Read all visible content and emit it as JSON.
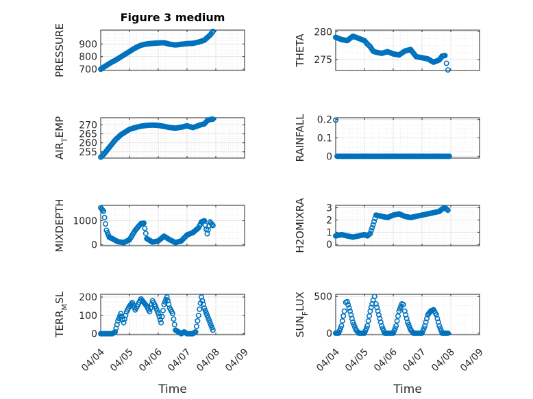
{
  "figure": {
    "title": "Figure 3 medium",
    "xlabel": "Time",
    "marker_color": "#0072BD",
    "axis_color": "#262626",
    "grid_color": "#DFDFDF"
  },
  "chart_data": [
    {
      "type": "scatter",
      "title": "Figure 3 medium",
      "xlabel": "",
      "ylabel": "PRESSURE",
      "ylim": [
        690,
        1010
      ],
      "yticks": [
        700,
        800,
        900
      ],
      "ytick_labels": [
        "700",
        "800",
        "900"
      ],
      "xlim": [
        "04/04",
        "04/09"
      ],
      "xticks": [
        "04/04",
        "04/05",
        "04/06",
        "04/07",
        "04/08",
        "04/09"
      ],
      "grid": "major+minor",
      "series": [
        {
          "x": [
            0,
            0.1,
            0.2,
            0.3,
            0.4,
            0.5,
            0.6,
            0.7,
            0.8,
            0.9,
            1.0,
            1.1,
            1.2,
            1.3,
            1.4,
            1.5,
            1.6,
            1.7,
            1.8,
            1.9,
            2.0,
            2.2,
            2.4,
            2.6,
            2.8,
            3.0,
            3.2,
            3.4,
            3.6,
            3.8,
            3.9
          ],
          "y": [
            700,
            716,
            730,
            745,
            758,
            770,
            783,
            798,
            812,
            826,
            840,
            855,
            868,
            880,
            890,
            896,
            900,
            903,
            905,
            907,
            908,
            910,
            898,
            892,
            898,
            903,
            905,
            915,
            930,
            970,
            1000
          ]
        }
      ]
    },
    {
      "type": "scatter",
      "xlabel": "",
      "ylabel": "THETA",
      "ylim": [
        273,
        280.3
      ],
      "yticks": [
        275,
        280
      ],
      "ytick_labels": [
        "275",
        "280"
      ],
      "xlim": [
        "04/04",
        "04/09"
      ],
      "xticks": [
        "04/04",
        "04/05",
        "04/06",
        "04/07",
        "04/08",
        "04/09"
      ],
      "grid": "major+minor",
      "series": [
        {
          "x": [
            0,
            0.2,
            0.4,
            0.6,
            0.8,
            1.0,
            1.1,
            1.2,
            1.3,
            1.4,
            1.6,
            1.8,
            2.0,
            2.2,
            2.4,
            2.6,
            2.8,
            3.0,
            3.2,
            3.4,
            3.6,
            3.7,
            3.8,
            3.85,
            3.9
          ],
          "y": [
            279,
            278.6,
            278.4,
            279.2,
            278.8,
            278.4,
            277.8,
            277.3,
            276.5,
            276.3,
            276.1,
            276.4,
            276,
            275.8,
            276.5,
            276.8,
            275.5,
            275.3,
            275.1,
            274.5,
            274.9,
            275.6,
            275.7,
            274.3,
            273.1
          ]
        }
      ]
    },
    {
      "type": "scatter",
      "xlabel": "",
      "ylabel": "AIR_TEMP",
      "ylim": [
        251.5,
        274
      ],
      "yticks": [
        255,
        260,
        265,
        270
      ],
      "ytick_labels": [
        "255",
        "260",
        "265",
        "270"
      ],
      "xlim": [
        "04/04",
        "04/09"
      ],
      "xticks": [
        "04/04",
        "04/05",
        "04/06",
        "04/07",
        "04/08",
        "04/09"
      ],
      "grid": "major+minor",
      "series": [
        {
          "x": [
            0,
            0.1,
            0.2,
            0.3,
            0.4,
            0.5,
            0.6,
            0.7,
            0.8,
            0.9,
            1.0,
            1.2,
            1.4,
            1.6,
            1.8,
            2.0,
            2.2,
            2.4,
            2.6,
            2.8,
            3.0,
            3.2,
            3.4,
            3.5,
            3.6,
            3.7,
            3.8,
            3.9
          ],
          "y": [
            252,
            253.5,
            255.5,
            257.5,
            259.5,
            261.5,
            263,
            264.5,
            265.5,
            266.5,
            267.5,
            268.5,
            269.3,
            269.7,
            269.9,
            269.7,
            269.2,
            268.5,
            268.2,
            268.7,
            269.5,
            268.5,
            269.6,
            270.2,
            270.5,
            272.3,
            273,
            273.2
          ]
        }
      ]
    },
    {
      "type": "scatter",
      "xlabel": "",
      "ylabel": "RAINFALL",
      "ylim": [
        -0.01,
        0.21
      ],
      "yticks": [
        0,
        0.1,
        0.2
      ],
      "ytick_labels": [
        "0",
        "0.1",
        "0.2"
      ],
      "xlim": [
        "04/04",
        "04/09"
      ],
      "xticks": [
        "04/04",
        "04/05",
        "04/06",
        "04/07",
        "04/08",
        "04/09"
      ],
      "grid": "major+minor",
      "series": [
        {
          "x": [
            0,
            0.05,
            0.2,
            0.4,
            0.6,
            0.8,
            1.0,
            1.2,
            1.4,
            1.6,
            1.8,
            2.0,
            2.2,
            2.4,
            2.6,
            2.8,
            3.0,
            3.2,
            3.4,
            3.6,
            3.8,
            3.95
          ],
          "y": [
            0.197,
            0,
            0,
            0,
            0,
            0,
            0,
            0,
            0,
            0,
            0,
            0,
            0,
            0,
            0,
            0,
            0,
            0,
            0,
            0,
            0,
            0
          ]
        }
      ]
    },
    {
      "type": "scatter",
      "xlabel": "",
      "ylabel": "MIXDEPTH",
      "ylim": [
        -50,
        1650
      ],
      "yticks": [
        0,
        1000
      ],
      "ytick_labels": [
        "0",
        "1000"
      ],
      "xlim": [
        "04/04",
        "04/09"
      ],
      "xticks": [
        "04/04",
        "04/05",
        "04/06",
        "04/07",
        "04/08",
        "04/09"
      ],
      "grid": "major+minor",
      "series": [
        {
          "x": [
            0,
            0.1,
            0.2,
            0.3,
            0.4,
            0.5,
            0.6,
            0.8,
            1.0,
            1.2,
            1.4,
            1.5,
            1.6,
            1.8,
            2.0,
            2.2,
            2.4,
            2.6,
            2.8,
            3.0,
            3.2,
            3.4,
            3.5,
            3.6,
            3.7,
            3.8,
            3.9
          ],
          "y": [
            1550,
            1400,
            600,
            300,
            250,
            180,
            120,
            80,
            200,
            600,
            880,
            900,
            250,
            100,
            150,
            350,
            200,
            80,
            150,
            400,
            500,
            700,
            950,
            1000,
            450,
            950,
            800
          ]
        }
      ]
    },
    {
      "type": "scatter",
      "xlabel": "",
      "ylabel": "H2OMIXRA",
      "ylim": [
        -0.1,
        3.2
      ],
      "yticks": [
        0,
        1,
        2,
        3
      ],
      "ytick_labels": [
        "0",
        "1",
        "2",
        "3"
      ],
      "xlim": [
        "04/04",
        "04/09"
      ],
      "xticks": [
        "04/04",
        "04/05",
        "04/06",
        "04/07",
        "04/08",
        "04/09"
      ],
      "grid": "major+minor",
      "series": [
        {
          "x": [
            0,
            0.2,
            0.4,
            0.6,
            0.8,
            1.0,
            1.1,
            1.2,
            1.3,
            1.4,
            1.6,
            1.8,
            2.0,
            2.2,
            2.4,
            2.6,
            2.8,
            3.0,
            3.2,
            3.4,
            3.6,
            3.7,
            3.8,
            3.9
          ],
          "y": [
            0.7,
            0.8,
            0.7,
            0.6,
            0.7,
            0.8,
            0.7,
            0.9,
            1.6,
            2.4,
            2.3,
            2.2,
            2.4,
            2.5,
            2.3,
            2.2,
            2.3,
            2.4,
            2.5,
            2.6,
            2.7,
            2.9,
            3.0,
            2.8
          ]
        }
      ]
    },
    {
      "type": "scatter",
      "xlabel": "",
      "ylabel": "TERR_MSL",
      "ylim": [
        -5,
        215
      ],
      "yticks": [
        0,
        100,
        200
      ],
      "ytick_labels": [
        "0",
        "100",
        "200"
      ],
      "xlim": [
        "04/04",
        "04/09"
      ],
      "xticks": [
        "04/04",
        "04/05",
        "04/06",
        "04/07",
        "04/08",
        "04/09"
      ],
      "grid": "major+minor",
      "series": [
        {
          "x": [
            0,
            0.1,
            0.2,
            0.3,
            0.4,
            0.5,
            0.6,
            0.7,
            0.8,
            0.9,
            1.0,
            1.1,
            1.2,
            1.3,
            1.4,
            1.5,
            1.6,
            1.7,
            1.8,
            1.9,
            2.0,
            2.1,
            2.2,
            2.3,
            2.4,
            2.5,
            2.6,
            2.7,
            2.8,
            2.9,
            3.0,
            3.1,
            3.2,
            3.3,
            3.4,
            3.5,
            3.6,
            3.7,
            3.8,
            3.9
          ],
          "y": [
            0,
            0,
            0,
            0,
            0,
            10,
            70,
            110,
            60,
            120,
            150,
            170,
            130,
            160,
            190,
            170,
            150,
            120,
            180,
            150,
            110,
            60,
            160,
            200,
            140,
            110,
            20,
            10,
            0,
            10,
            0,
            0,
            0,
            10,
            100,
            200,
            140,
            100,
            60,
            20
          ]
        }
      ]
    },
    {
      "type": "scatter",
      "xlabel": "",
      "ylabel": "SUN_FLUX",
      "ylim": [
        -20,
        530
      ],
      "yticks": [
        0,
        500
      ],
      "ytick_labels": [
        "0",
        "500"
      ],
      "xlim": [
        "04/04",
        "04/09"
      ],
      "xticks": [
        "04/04",
        "04/05",
        "04/06",
        "04/07",
        "04/08",
        "04/09"
      ],
      "grid": "major+minor",
      "series": [
        {
          "x": [
            0,
            0.1,
            0.2,
            0.3,
            0.35,
            0.4,
            0.5,
            0.6,
            0.7,
            0.8,
            0.9,
            1.0,
            1.1,
            1.2,
            1.3,
            1.35,
            1.4,
            1.5,
            1.6,
            1.7,
            1.8,
            1.9,
            2.0,
            2.1,
            2.2,
            2.3,
            2.35,
            2.4,
            2.5,
            2.6,
            2.7,
            2.8,
            2.9,
            3.0,
            3.1,
            3.2,
            3.3,
            3.4,
            3.5,
            3.6,
            3.7,
            3.8,
            3.9
          ],
          "y": [
            0,
            0,
            100,
            300,
            420,
            430,
            300,
            150,
            50,
            0,
            0,
            0,
            100,
            300,
            450,
            500,
            400,
            250,
            100,
            0,
            0,
            0,
            0,
            100,
            300,
            400,
            390,
            300,
            150,
            50,
            0,
            0,
            0,
            0,
            100,
            250,
            300,
            320,
            250,
            100,
            0,
            0,
            0
          ]
        }
      ]
    }
  ]
}
